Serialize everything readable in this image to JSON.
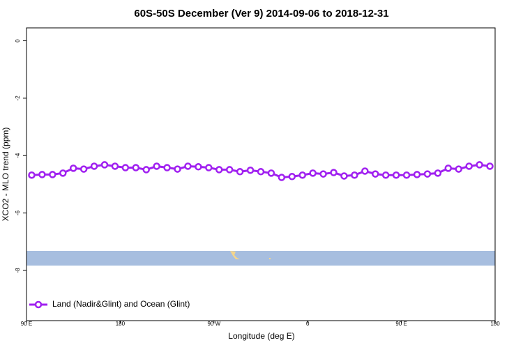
{
  "chart_data": {
    "type": "line",
    "title": "60S-50S December (Ver 9)   2014-09-06 to 2018-12-31",
    "x_label": "Longitude (deg E)",
    "y_label": "XCO2 - MLO trend (ppm)",
    "x": [
      95,
      105,
      115,
      125,
      135,
      145,
      155,
      165,
      175,
      185,
      195,
      205,
      215,
      225,
      235,
      245,
      255,
      265,
      275,
      285,
      295,
      305,
      315,
      325,
      335,
      345,
      355,
      365,
      375,
      385,
      395,
      405,
      415,
      425,
      435,
      445,
      455,
      465,
      475,
      485,
      495,
      505,
      515,
      525,
      535
    ],
    "series": [
      {
        "name": "Land (Nadir&Glint) and Ocean (Glint)",
        "color": "#a020f0",
        "values": [
          -4.68,
          -4.66,
          -4.66,
          -4.61,
          -4.44,
          -4.47,
          -4.37,
          -4.32,
          -4.37,
          -4.42,
          -4.42,
          -4.49,
          -4.37,
          -4.42,
          -4.47,
          -4.37,
          -4.39,
          -4.42,
          -4.49,
          -4.49,
          -4.56,
          -4.51,
          -4.56,
          -4.61,
          -4.76,
          -4.73,
          -4.68,
          -4.61,
          -4.64,
          -4.59,
          -4.71,
          -4.68,
          -4.54,
          -4.64,
          -4.68,
          -4.68,
          -4.68,
          -4.66,
          -4.64,
          -4.61,
          -4.44,
          -4.47,
          -4.37,
          -4.32,
          -4.37
        ]
      }
    ],
    "xlim": [
      90,
      540
    ],
    "xticks": [
      {
        "value": 90,
        "label": "90 E"
      },
      {
        "value": 180,
        "label": "180"
      },
      {
        "value": 270,
        "label": "90 W"
      },
      {
        "value": 360,
        "label": "0"
      },
      {
        "value": 450,
        "label": "90 E"
      },
      {
        "value": 540,
        "label": "180"
      }
    ],
    "ylim": [
      -9.75,
      0.45
    ],
    "yticks": [
      0,
      -2,
      -4,
      -6,
      -8
    ],
    "legend": "bottom-left"
  }
}
